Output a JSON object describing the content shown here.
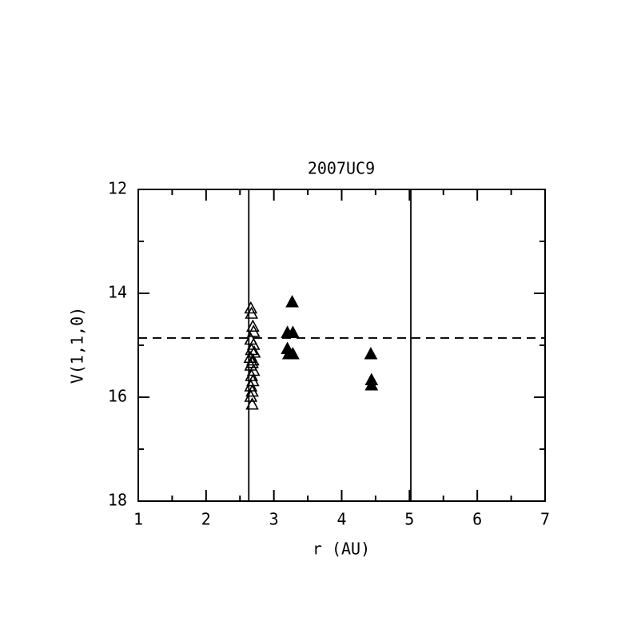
{
  "chart_data": {
    "type": "scatter",
    "title": "2007UC9",
    "x_label": "r (AU)",
    "y_label": "V(1,1,0)",
    "xlim": [
      1,
      7
    ],
    "xticks": [
      1,
      2,
      3,
      4,
      5,
      6,
      7
    ],
    "xticks_minor": [
      1.5,
      2.5,
      3.5,
      4.5,
      5.5,
      6.5
    ],
    "ylim": [
      12,
      18
    ],
    "invert_y": true,
    "yticks": [
      12,
      14,
      16,
      18
    ],
    "yticks_minor": [
      13,
      15,
      17
    ],
    "vlines": [
      2.63,
      5.02
    ],
    "hline": 14.86,
    "series": [
      {
        "marker": "open",
        "color": "#000000",
        "x": [
          2.66,
          2.67,
          2.69,
          2.7,
          2.66,
          2.7,
          2.67,
          2.71,
          2.65,
          2.69,
          2.68,
          2.66,
          2.7,
          2.67,
          2.69,
          2.66,
          2.68,
          2.66,
          2.68
        ],
        "values": [
          14.3,
          14.4,
          14.65,
          14.75,
          14.9,
          15.0,
          15.1,
          15.15,
          15.25,
          15.3,
          15.35,
          15.4,
          15.5,
          15.6,
          15.7,
          15.8,
          15.9,
          16.0,
          16.15
        ]
      },
      {
        "marker": "filled",
        "color": "#000000",
        "x": [
          3.27,
          3.2,
          3.28,
          3.2,
          3.22,
          3.28,
          4.43,
          4.44,
          4.44
        ],
        "values": [
          14.18,
          14.77,
          14.77,
          15.08,
          15.18,
          15.18,
          15.18,
          15.68,
          15.78
        ]
      }
    ]
  }
}
